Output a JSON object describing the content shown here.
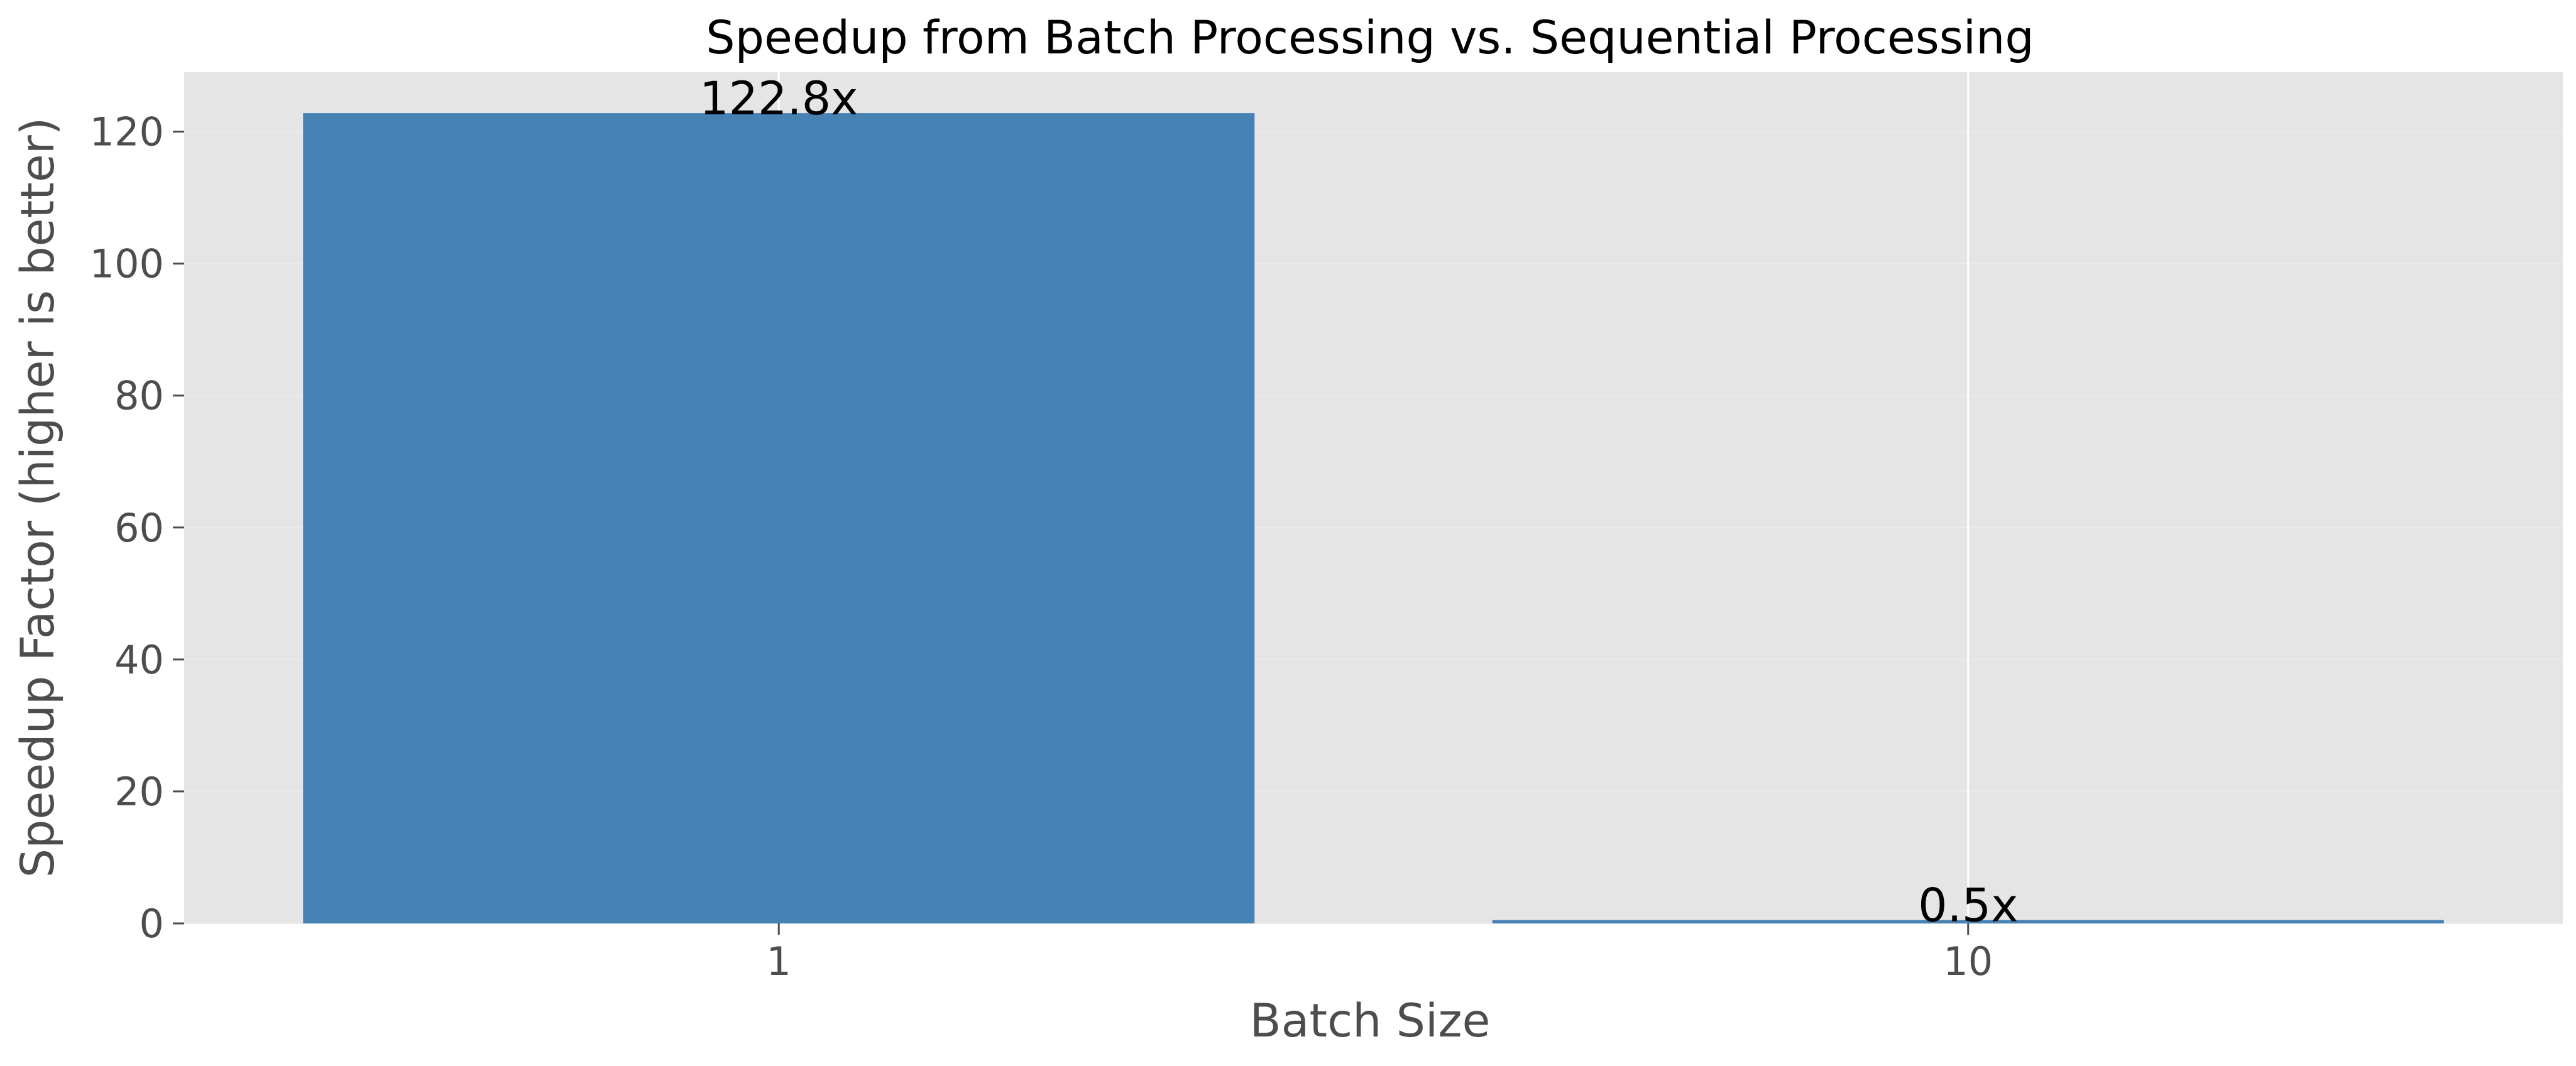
{
  "chart_data": {
    "type": "bar",
    "title": "Speedup from Batch Processing vs. Sequential Processing",
    "xlabel": "Batch Size",
    "ylabel": "Speedup Factor (higher is better)",
    "categories": [
      "1",
      "10"
    ],
    "values": [
      122.8,
      0.5
    ],
    "data_labels": [
      "122.8x",
      "0.5x"
    ],
    "ylim": [
      0,
      129
    ],
    "yticks": [
      0,
      20,
      40,
      60,
      80,
      100,
      120
    ],
    "grid": true,
    "bar_color": "#4682b4",
    "background_color": "#e5e5e5",
    "grid_color": "#ffffff"
  }
}
